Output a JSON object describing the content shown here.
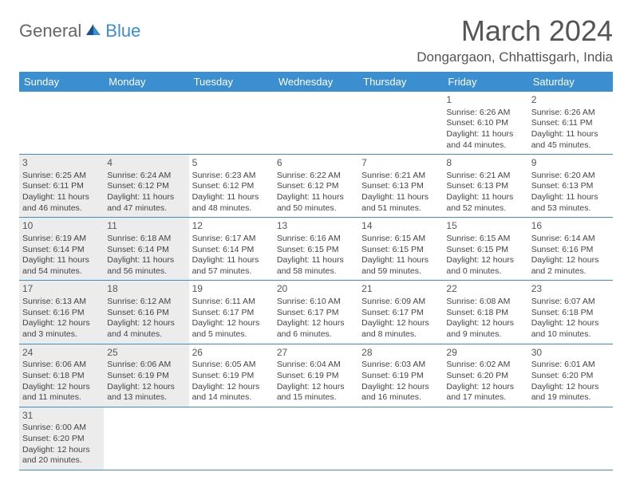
{
  "logo": {
    "general": "General",
    "blue": "Blue"
  },
  "title": "March 2024",
  "location": "Dongargaon, Chhattisgarh, India",
  "colors": {
    "header_bg": "#3b8ed0",
    "header_text": "#ffffff",
    "shaded_cell": "#ececec",
    "border": "#3b8ed0",
    "text": "#444444",
    "title_color": "#555555"
  },
  "weekdays": [
    "Sunday",
    "Monday",
    "Tuesday",
    "Wednesday",
    "Thursday",
    "Friday",
    "Saturday"
  ],
  "weeks": [
    [
      {
        "empty": true
      },
      {
        "empty": true
      },
      {
        "empty": true
      },
      {
        "empty": true
      },
      {
        "empty": true
      },
      {
        "day": "1",
        "sunrise": "Sunrise: 6:26 AM",
        "sunset": "Sunset: 6:10 PM",
        "daylight": "Daylight: 11 hours and 44 minutes."
      },
      {
        "day": "2",
        "sunrise": "Sunrise: 6:26 AM",
        "sunset": "Sunset: 6:11 PM",
        "daylight": "Daylight: 11 hours and 45 minutes."
      }
    ],
    [
      {
        "day": "3",
        "sunrise": "Sunrise: 6:25 AM",
        "sunset": "Sunset: 6:11 PM",
        "daylight": "Daylight: 11 hours and 46 minutes."
      },
      {
        "day": "4",
        "sunrise": "Sunrise: 6:24 AM",
        "sunset": "Sunset: 6:12 PM",
        "daylight": "Daylight: 11 hours and 47 minutes."
      },
      {
        "day": "5",
        "sunrise": "Sunrise: 6:23 AM",
        "sunset": "Sunset: 6:12 PM",
        "daylight": "Daylight: 11 hours and 48 minutes."
      },
      {
        "day": "6",
        "sunrise": "Sunrise: 6:22 AM",
        "sunset": "Sunset: 6:12 PM",
        "daylight": "Daylight: 11 hours and 50 minutes."
      },
      {
        "day": "7",
        "sunrise": "Sunrise: 6:21 AM",
        "sunset": "Sunset: 6:13 PM",
        "daylight": "Daylight: 11 hours and 51 minutes."
      },
      {
        "day": "8",
        "sunrise": "Sunrise: 6:21 AM",
        "sunset": "Sunset: 6:13 PM",
        "daylight": "Daylight: 11 hours and 52 minutes."
      },
      {
        "day": "9",
        "sunrise": "Sunrise: 6:20 AM",
        "sunset": "Sunset: 6:13 PM",
        "daylight": "Daylight: 11 hours and 53 minutes."
      }
    ],
    [
      {
        "day": "10",
        "sunrise": "Sunrise: 6:19 AM",
        "sunset": "Sunset: 6:14 PM",
        "daylight": "Daylight: 11 hours and 54 minutes."
      },
      {
        "day": "11",
        "sunrise": "Sunrise: 6:18 AM",
        "sunset": "Sunset: 6:14 PM",
        "daylight": "Daylight: 11 hours and 56 minutes."
      },
      {
        "day": "12",
        "sunrise": "Sunrise: 6:17 AM",
        "sunset": "Sunset: 6:14 PM",
        "daylight": "Daylight: 11 hours and 57 minutes."
      },
      {
        "day": "13",
        "sunrise": "Sunrise: 6:16 AM",
        "sunset": "Sunset: 6:15 PM",
        "daylight": "Daylight: 11 hours and 58 minutes."
      },
      {
        "day": "14",
        "sunrise": "Sunrise: 6:15 AM",
        "sunset": "Sunset: 6:15 PM",
        "daylight": "Daylight: 11 hours and 59 minutes."
      },
      {
        "day": "15",
        "sunrise": "Sunrise: 6:15 AM",
        "sunset": "Sunset: 6:15 PM",
        "daylight": "Daylight: 12 hours and 0 minutes."
      },
      {
        "day": "16",
        "sunrise": "Sunrise: 6:14 AM",
        "sunset": "Sunset: 6:16 PM",
        "daylight": "Daylight: 12 hours and 2 minutes."
      }
    ],
    [
      {
        "day": "17",
        "sunrise": "Sunrise: 6:13 AM",
        "sunset": "Sunset: 6:16 PM",
        "daylight": "Daylight: 12 hours and 3 minutes."
      },
      {
        "day": "18",
        "sunrise": "Sunrise: 6:12 AM",
        "sunset": "Sunset: 6:16 PM",
        "daylight": "Daylight: 12 hours and 4 minutes."
      },
      {
        "day": "19",
        "sunrise": "Sunrise: 6:11 AM",
        "sunset": "Sunset: 6:17 PM",
        "daylight": "Daylight: 12 hours and 5 minutes."
      },
      {
        "day": "20",
        "sunrise": "Sunrise: 6:10 AM",
        "sunset": "Sunset: 6:17 PM",
        "daylight": "Daylight: 12 hours and 6 minutes."
      },
      {
        "day": "21",
        "sunrise": "Sunrise: 6:09 AM",
        "sunset": "Sunset: 6:17 PM",
        "daylight": "Daylight: 12 hours and 8 minutes."
      },
      {
        "day": "22",
        "sunrise": "Sunrise: 6:08 AM",
        "sunset": "Sunset: 6:18 PM",
        "daylight": "Daylight: 12 hours and 9 minutes."
      },
      {
        "day": "23",
        "sunrise": "Sunrise: 6:07 AM",
        "sunset": "Sunset: 6:18 PM",
        "daylight": "Daylight: 12 hours and 10 minutes."
      }
    ],
    [
      {
        "day": "24",
        "sunrise": "Sunrise: 6:06 AM",
        "sunset": "Sunset: 6:18 PM",
        "daylight": "Daylight: 12 hours and 11 minutes."
      },
      {
        "day": "25",
        "sunrise": "Sunrise: 6:06 AM",
        "sunset": "Sunset: 6:19 PM",
        "daylight": "Daylight: 12 hours and 13 minutes."
      },
      {
        "day": "26",
        "sunrise": "Sunrise: 6:05 AM",
        "sunset": "Sunset: 6:19 PM",
        "daylight": "Daylight: 12 hours and 14 minutes."
      },
      {
        "day": "27",
        "sunrise": "Sunrise: 6:04 AM",
        "sunset": "Sunset: 6:19 PM",
        "daylight": "Daylight: 12 hours and 15 minutes."
      },
      {
        "day": "28",
        "sunrise": "Sunrise: 6:03 AM",
        "sunset": "Sunset: 6:19 PM",
        "daylight": "Daylight: 12 hours and 16 minutes."
      },
      {
        "day": "29",
        "sunrise": "Sunrise: 6:02 AM",
        "sunset": "Sunset: 6:20 PM",
        "daylight": "Daylight: 12 hours and 17 minutes."
      },
      {
        "day": "30",
        "sunrise": "Sunrise: 6:01 AM",
        "sunset": "Sunset: 6:20 PM",
        "daylight": "Daylight: 12 hours and 19 minutes."
      }
    ],
    [
      {
        "day": "31",
        "sunrise": "Sunrise: 6:00 AM",
        "sunset": "Sunset: 6:20 PM",
        "daylight": "Daylight: 12 hours and 20 minutes."
      },
      {
        "empty": true
      },
      {
        "empty": true
      },
      {
        "empty": true
      },
      {
        "empty": true
      },
      {
        "empty": true
      },
      {
        "empty": true
      }
    ]
  ]
}
